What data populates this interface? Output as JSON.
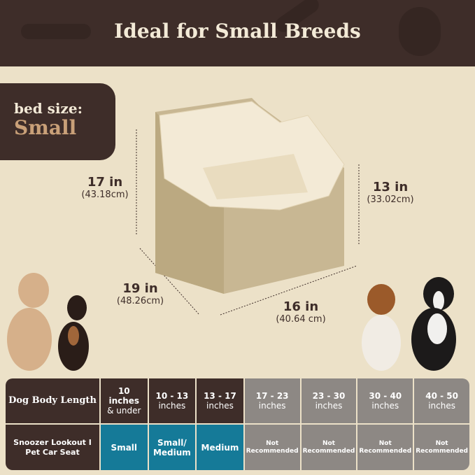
{
  "header": {
    "title": "Ideal for Small Breeds"
  },
  "size_box": {
    "label": "bed size:",
    "value": "Small"
  },
  "dimensions": {
    "height_back": {
      "in": "17 in",
      "cm": "(43.18cm)"
    },
    "height_front": {
      "in": "13 in",
      "cm": "(33.02cm)"
    },
    "depth": {
      "in": "19 in",
      "cm": "(48.26cm)"
    },
    "width": {
      "in": "16 in",
      "cm": "(40.64 cm)"
    }
  },
  "table": {
    "header_label": "Dog Body Length",
    "row_label": "Snoozer Lookout I Pet Car Seat",
    "columns": [
      {
        "range": "10 inches",
        "unit": "& under",
        "fit": "Small",
        "status": "recommended"
      },
      {
        "range": "10 - 13",
        "unit": "inches",
        "fit": "Small/ Medium",
        "status": "recommended"
      },
      {
        "range": "13 - 17",
        "unit": "inches",
        "fit": "Medium",
        "status": "recommended"
      },
      {
        "range": "17 - 23",
        "unit": "inches",
        "fit": "Not Recommended",
        "status": "not"
      },
      {
        "range": "23 - 30",
        "unit": "inches",
        "fit": "Not Recommended",
        "status": "not"
      },
      {
        "range": "30 - 40",
        "unit": "inches",
        "fit": "Not Recommended",
        "status": "not"
      },
      {
        "range": "40 - 50",
        "unit": "inches",
        "fit": "Not Recommended",
        "status": "not"
      }
    ]
  },
  "colors": {
    "brown": "#3e2d29",
    "teal": "#157a98",
    "grey": "#8d8884",
    "cream": "#ece1c8",
    "tan": "#c9a078"
  }
}
